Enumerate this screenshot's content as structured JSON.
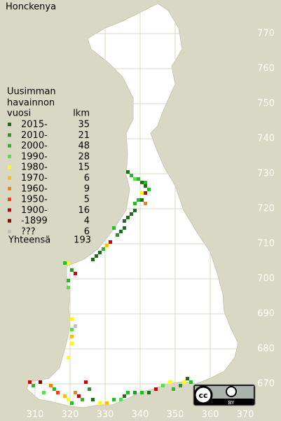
{
  "title": "Honckenya",
  "legend": {
    "heading": [
      "Uusimman",
      "havainnon",
      "vuosi"
    ],
    "count_heading": "lkm",
    "items": [
      {
        "label": "2015-",
        "count": 35,
        "color": "#1e6e1e"
      },
      {
        "label": "2010-",
        "count": 21,
        "color": "#2a962a"
      },
      {
        "label": "2000-",
        "count": 48,
        "color": "#20c020"
      },
      {
        "label": "1990-",
        "count": 28,
        "color": "#50e050"
      },
      {
        "label": "1980-",
        "count": 15,
        "color": "#ffff00"
      },
      {
        "label": "1970-",
        "count": 6,
        "color": "#ffbf00"
      },
      {
        "label": "1960-",
        "count": 9,
        "color": "#ff7f00"
      },
      {
        "label": "1950-",
        "count": 5,
        "color": "#ff3f00"
      },
      {
        "label": "1900-",
        "count": 16,
        "color": "#d00000"
      },
      {
        "label": "-1899",
        "count": 4,
        "color": "#8f0000"
      },
      {
        "label": "???",
        "count": 6,
        "color": "#c0c0c0"
      }
    ],
    "total_label": "Yhteensä",
    "total": 193
  },
  "xticks": [
    310,
    320,
    330,
    340,
    350,
    360,
    370
  ],
  "yticks": [
    670,
    680,
    690,
    700,
    710,
    720,
    730,
    740,
    750,
    760,
    770
  ],
  "license": {
    "icon": "cc",
    "label": "BY"
  },
  "squares": [
    {
      "x": 336,
      "y": 731,
      "period": 0
    },
    {
      "x": 337,
      "y": 730,
      "period": 2
    },
    {
      "x": 338,
      "y": 729,
      "period": 3
    },
    {
      "x": 339,
      "y": 729,
      "period": 2
    },
    {
      "x": 340,
      "y": 728,
      "period": 0
    },
    {
      "x": 341,
      "y": 728,
      "period": 2
    },
    {
      "x": 341,
      "y": 727,
      "period": 0
    },
    {
      "x": 342,
      "y": 726,
      "period": 2
    },
    {
      "x": 340,
      "y": 725,
      "period": 4
    },
    {
      "x": 341,
      "y": 725,
      "period": 8
    },
    {
      "x": 339,
      "y": 723,
      "period": 2
    },
    {
      "x": 340,
      "y": 723,
      "period": 0
    },
    {
      "x": 341,
      "y": 722,
      "period": 6
    },
    {
      "x": 338,
      "y": 722,
      "period": 2
    },
    {
      "x": 338,
      "y": 720,
      "period": 0
    },
    {
      "x": 337,
      "y": 719,
      "period": 0
    },
    {
      "x": 336,
      "y": 718,
      "period": 0
    },
    {
      "x": 335,
      "y": 717,
      "period": 0
    },
    {
      "x": 335,
      "y": 715,
      "period": 0
    },
    {
      "x": 334,
      "y": 714,
      "period": 0
    },
    {
      "x": 333,
      "y": 713,
      "period": 1
    },
    {
      "x": 332,
      "y": 715,
      "period": 2
    },
    {
      "x": 331,
      "y": 711,
      "period": 8
    },
    {
      "x": 330,
      "y": 710,
      "period": 5
    },
    {
      "x": 329,
      "y": 709,
      "period": 2
    },
    {
      "x": 328,
      "y": 708,
      "period": 0
    },
    {
      "x": 327,
      "y": 707,
      "period": 0
    },
    {
      "x": 326,
      "y": 706,
      "period": 0
    },
    {
      "x": 318,
      "y": 705,
      "period": 2
    },
    {
      "x": 319,
      "y": 705,
      "period": 4
    },
    {
      "x": 320,
      "y": 703,
      "period": 1
    },
    {
      "x": 321,
      "y": 702,
      "period": 8
    },
    {
      "x": 319,
      "y": 700,
      "period": 2
    },
    {
      "x": 319,
      "y": 698,
      "period": 3
    },
    {
      "x": 320,
      "y": 689,
      "period": 4
    },
    {
      "x": 321,
      "y": 687,
      "period": 10
    },
    {
      "x": 320,
      "y": 686,
      "period": 3
    },
    {
      "x": 320,
      "y": 684,
      "period": 5
    },
    {
      "x": 320,
      "y": 682,
      "period": 4
    },
    {
      "x": 319,
      "y": 678,
      "period": 4
    },
    {
      "x": 308,
      "y": 671,
      "period": 8
    },
    {
      "x": 309,
      "y": 670,
      "period": 2
    },
    {
      "x": 311,
      "y": 671,
      "period": 9
    },
    {
      "x": 312,
      "y": 668,
      "period": 3
    },
    {
      "x": 314,
      "y": 670,
      "period": 6
    },
    {
      "x": 315,
      "y": 669,
      "period": 2
    },
    {
      "x": 316,
      "y": 668,
      "period": 7
    },
    {
      "x": 318,
      "y": 667,
      "period": 5
    },
    {
      "x": 319,
      "y": 666,
      "period": 4
    },
    {
      "x": 320,
      "y": 665,
      "period": 2
    },
    {
      "x": 321,
      "y": 668,
      "period": 6
    },
    {
      "x": 322,
      "y": 667,
      "period": 8
    },
    {
      "x": 323,
      "y": 666,
      "period": 2
    },
    {
      "x": 324,
      "y": 671,
      "period": 8
    },
    {
      "x": 325,
      "y": 669,
      "period": 1
    },
    {
      "x": 326,
      "y": 666,
      "period": 0
    },
    {
      "x": 328,
      "y": 665,
      "period": 4
    },
    {
      "x": 330,
      "y": 665,
      "period": 5
    },
    {
      "x": 332,
      "y": 666,
      "period": 2
    },
    {
      "x": 334,
      "y": 666,
      "period": 3
    },
    {
      "x": 335,
      "y": 667,
      "period": 0
    },
    {
      "x": 336,
      "y": 668,
      "period": 2
    },
    {
      "x": 338,
      "y": 668,
      "period": 1
    },
    {
      "x": 340,
      "y": 668,
      "period": 2
    },
    {
      "x": 342,
      "y": 668,
      "period": 0
    },
    {
      "x": 344,
      "y": 669,
      "period": 8
    },
    {
      "x": 346,
      "y": 670,
      "period": 3
    },
    {
      "x": 348,
      "y": 671,
      "period": 4
    },
    {
      "x": 349,
      "y": 669,
      "period": 2
    },
    {
      "x": 351,
      "y": 670,
      "period": 1
    },
    {
      "x": 352,
      "y": 671,
      "period": 4
    },
    {
      "x": 353,
      "y": 672,
      "period": 0
    },
    {
      "x": 354,
      "y": 671,
      "period": 2
    }
  ]
}
